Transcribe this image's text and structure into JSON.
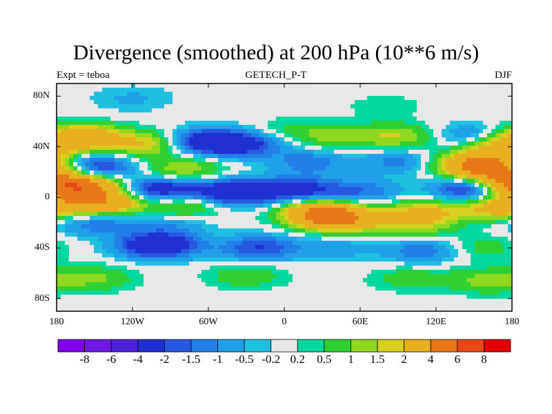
{
  "title": "Divergence (smoothed) at 200 hPa (10**6 m/s)",
  "subtitle_left": "Expt = teboa",
  "subtitle_center": "GETECH_P-T",
  "subtitle_right": "DJF",
  "chart_data": {
    "type": "heatmap",
    "projection": "cylindrical equidistant",
    "field": "divergence (smoothed) at 200 hPa",
    "units": "10**6 m/s",
    "xlim": [
      -180,
      180
    ],
    "ylim": [
      -90,
      90
    ],
    "x_ticks": [
      {
        "value": -180,
        "label": "180"
      },
      {
        "value": -120,
        "label": "120W"
      },
      {
        "value": -60,
        "label": "60W"
      },
      {
        "value": 0,
        "label": "0"
      },
      {
        "value": 60,
        "label": "60E"
      },
      {
        "value": 120,
        "label": "120E"
      },
      {
        "value": 180,
        "label": "180"
      }
    ],
    "y_ticks": [
      {
        "value": 80,
        "label": "80N"
      },
      {
        "value": 40,
        "label": "40N"
      },
      {
        "value": 0,
        "label": "0"
      },
      {
        "value": -40,
        "label": "40S"
      },
      {
        "value": -80,
        "label": "80S"
      }
    ],
    "contour_levels": [
      -8,
      -6,
      -4,
      -2,
      -1.5,
      -1,
      -0.5,
      -0.2,
      0.2,
      0.5,
      1,
      1.5,
      2,
      4,
      6,
      8
    ],
    "colorbar_labels": [
      "-8",
      "-6",
      "-4",
      "-2",
      "-1.5",
      "-1",
      "-0.5",
      "-0.2",
      "0.2",
      "0.5",
      "1",
      "1.5",
      "2",
      "4",
      "6",
      "8"
    ],
    "colorbar_colors": [
      "#8000e8",
      "#7018e0",
      "#5020d8",
      "#2030d0",
      "#2858e0",
      "#2080e8",
      "#20a0e8",
      "#20c0e0",
      "#e8e8e8",
      "#00d8a0",
      "#30d030",
      "#90d820",
      "#d8d020",
      "#e8b020",
      "#e87818",
      "#e84818",
      "#e00000"
    ],
    "anomalies": [
      {
        "lon": -160,
        "lat": 48,
        "value": 3
      },
      {
        "lon": -110,
        "lat": 42,
        "value": 2
      },
      {
        "lon": -60,
        "lat": 44,
        "value": -3
      },
      {
        "lon": -30,
        "lat": 42,
        "value": -2
      },
      {
        "lon": 0,
        "lat": 52,
        "value": 0.6
      },
      {
        "lon": 40,
        "lat": 48,
        "value": 1.2
      },
      {
        "lon": 90,
        "lat": 48,
        "value": 1.5
      },
      {
        "lon": 150,
        "lat": 48,
        "value": -1.4
      },
      {
        "lon": 170,
        "lat": 40,
        "value": 2.5
      },
      {
        "lon": -150,
        "lat": 24,
        "value": -2.5
      },
      {
        "lon": -80,
        "lat": 22,
        "value": 1.5
      },
      {
        "lon": 20,
        "lat": 28,
        "value": -1.3
      },
      {
        "lon": 90,
        "lat": 28,
        "value": -1.2
      },
      {
        "lon": 150,
        "lat": 26,
        "value": 3
      },
      {
        "lon": 165,
        "lat": 22,
        "value": 3
      },
      {
        "lon": -175,
        "lat": 10,
        "value": 5
      },
      {
        "lon": -150,
        "lat": 8,
        "value": 2
      },
      {
        "lon": -100,
        "lat": 6,
        "value": -3
      },
      {
        "lon": -40,
        "lat": 4,
        "value": -3.5
      },
      {
        "lon": 10,
        "lat": 6,
        "value": -2.5
      },
      {
        "lon": 60,
        "lat": 4,
        "value": -1.5
      },
      {
        "lon": 150,
        "lat": 6,
        "value": -3
      },
      {
        "lon": -170,
        "lat": -6,
        "value": 1.5
      },
      {
        "lon": -140,
        "lat": -4,
        "value": 3
      },
      {
        "lon": -80,
        "lat": -6,
        "value": 1.5
      },
      {
        "lon": 30,
        "lat": -12,
        "value": 4
      },
      {
        "lon": 45,
        "lat": -18,
        "value": 3
      },
      {
        "lon": 110,
        "lat": -12,
        "value": 2.2
      },
      {
        "lon": 165,
        "lat": -8,
        "value": 2
      },
      {
        "lon": -150,
        "lat": -20,
        "value": -1.5
      },
      {
        "lon": -90,
        "lat": -22,
        "value": -0.8
      },
      {
        "lon": 100,
        "lat": -24,
        "value": 1.3
      },
      {
        "lon": -100,
        "lat": -38,
        "value": -3.5
      },
      {
        "lon": -20,
        "lat": -40,
        "value": -2
      },
      {
        "lon": 40,
        "lat": -40,
        "value": -0.8
      },
      {
        "lon": 110,
        "lat": -42,
        "value": -1.5
      },
      {
        "lon": 155,
        "lat": -40,
        "value": 0.8
      },
      {
        "lon": -150,
        "lat": -64,
        "value": 1.1
      },
      {
        "lon": -30,
        "lat": -62,
        "value": 0.9
      },
      {
        "lon": 100,
        "lat": -64,
        "value": 0.8
      },
      {
        "lon": 160,
        "lat": -66,
        "value": 1.2
      },
      {
        "lon": -120,
        "lat": 78,
        "value": -0.6
      },
      {
        "lon": 80,
        "lat": 72,
        "value": 0.4
      }
    ]
  }
}
